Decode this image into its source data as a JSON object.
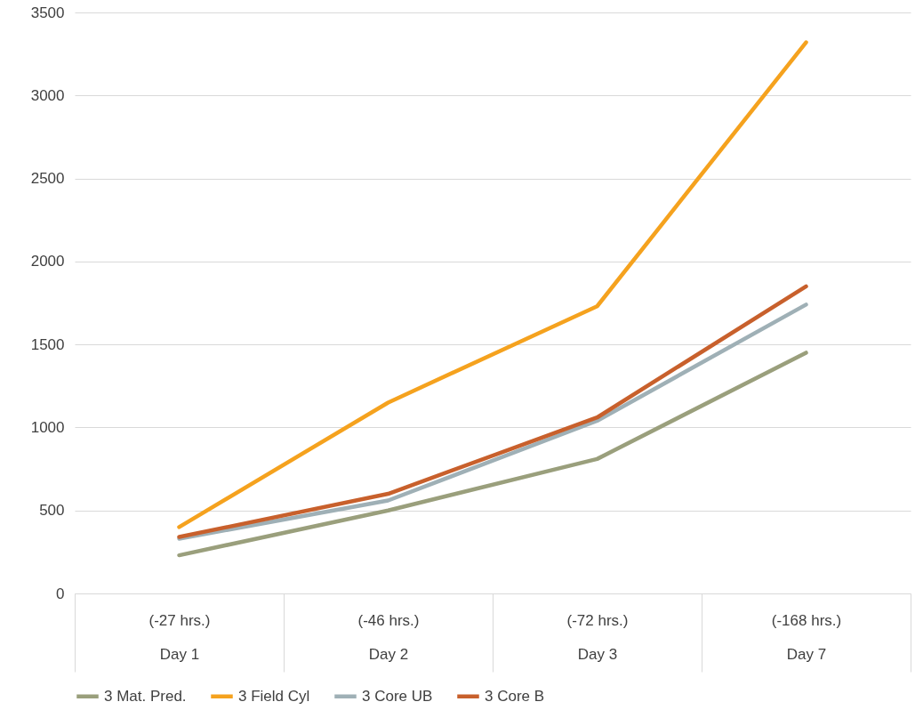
{
  "chart_data": {
    "type": "line",
    "categories": [
      "(-27 hrs.)\nDay 1",
      "(-46 hrs.)\nDay 2",
      "(-72 hrs.)\nDay 3",
      "(-168 hrs.)\nDay 7"
    ],
    "series": [
      {
        "name": "3 Mat. Pred.",
        "color": "#9a9f7c",
        "values": [
          230,
          500,
          810,
          1450
        ]
      },
      {
        "name": "3 Field Cyl",
        "color": "#f5a21e",
        "values": [
          400,
          1150,
          1730,
          3320
        ]
      },
      {
        "name": "3 Core UB",
        "color": "#9fb0b6",
        "values": [
          330,
          560,
          1040,
          1740
        ]
      },
      {
        "name": "3 Core B",
        "color": "#c8602c",
        "values": [
          340,
          600,
          1060,
          1850
        ]
      }
    ],
    "ylim": [
      0,
      3500
    ],
    "yticks": [
      0,
      500,
      1000,
      1500,
      2000,
      2500,
      3000,
      3500
    ],
    "grid": "y",
    "legend": "bottom",
    "marker": "none",
    "line_style": "solid"
  }
}
